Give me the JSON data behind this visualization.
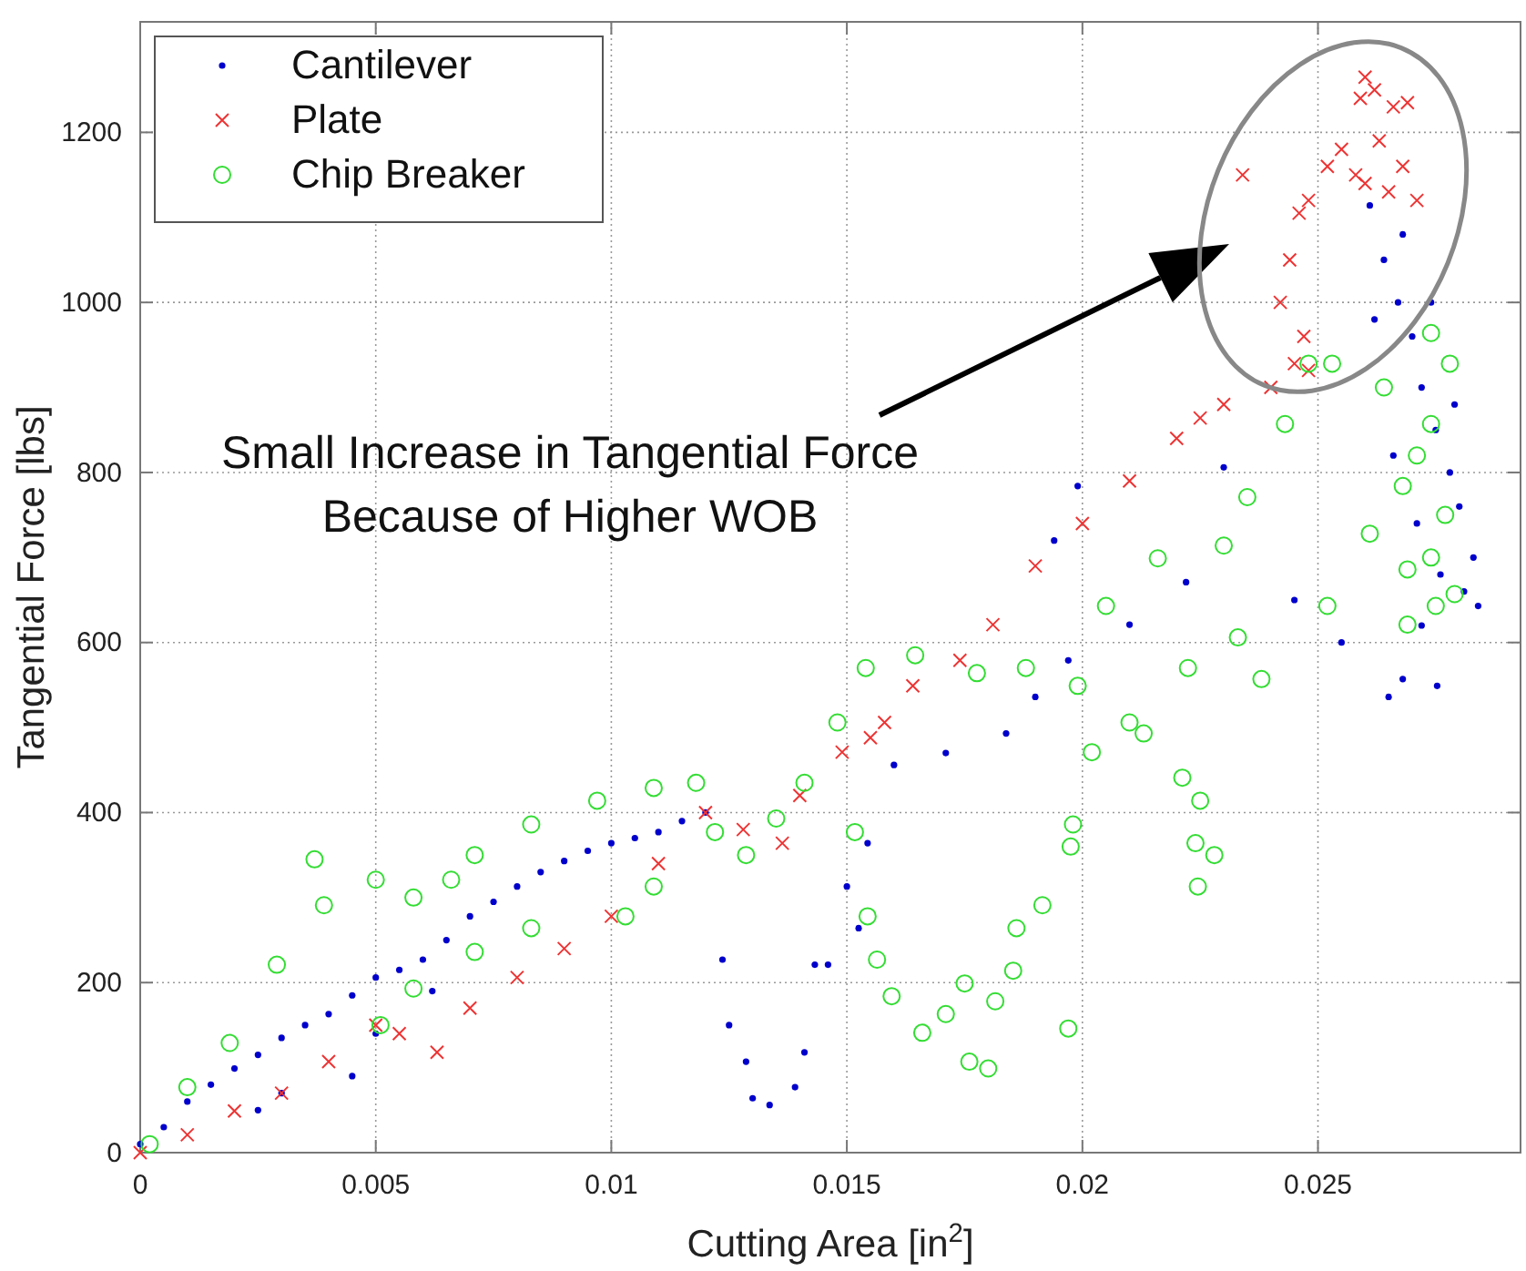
{
  "chart_data": {
    "type": "scatter",
    "xlabel": "Cutting Area [in$^{2}$]",
    "ylabel": "Tangential Force [lbs]",
    "xlim": [
      0,
      0.0293
    ],
    "ylim": [
      0,
      1330
    ],
    "xticks": [
      0,
      0.005,
      0.01,
      0.015,
      0.02,
      0.025
    ],
    "yticks": [
      0,
      200,
      400,
      600,
      800,
      1000,
      1200
    ],
    "grid": true,
    "legend": "top left",
    "annotations": [
      "Small Increase in Tangential Force Because of Higher WOB"
    ],
    "series": [
      {
        "name": "Cantilever",
        "color": "#0000cc",
        "marker": "circle",
        "x": [
          0,
          0.0005,
          0.001,
          0.0015,
          0.002,
          0.0025,
          0.003,
          0.0035,
          0.004,
          0.0045,
          0.005,
          0.0055,
          0.006,
          0.0065,
          0.007,
          0.0075,
          0.008,
          0.0085,
          0.009,
          0.0095,
          0.01,
          0.0105,
          0.011,
          0.0115,
          0.012,
          0.0025,
          0.003,
          0.0045,
          0.005,
          0.0062,
          0.01236,
          0.0125,
          0.01286,
          0.013,
          0.01336,
          0.0139,
          0.0141,
          0.01432,
          0.0146,
          0.015,
          0.01525,
          0.01544,
          0.016,
          0.0171,
          0.01838,
          0.019,
          0.0197,
          0.021,
          0.0194,
          0.0199,
          0.0222,
          0.023,
          0.0245,
          0.0255,
          0.0261,
          0.0264,
          0.0267,
          0.027,
          0.0272,
          0.0275,
          0.0278,
          0.028,
          0.0283,
          0.0284,
          0.0276,
          0.0272,
          0.0268,
          0.0265,
          0.0262,
          0.0268,
          0.02753,
          0.0271,
          0.0279,
          0.0266,
          0.0274,
          0.0281
        ],
        "values": [
          10,
          30,
          60,
          80,
          99,
          115,
          135,
          150,
          163,
          185,
          206,
          215,
          227,
          250,
          278,
          295,
          313,
          330,
          343,
          355,
          364,
          370,
          377,
          390,
          400,
          50,
          70,
          90,
          140,
          190,
          227,
          150,
          107,
          64,
          56,
          77,
          118,
          221,
          221,
          313,
          264,
          364,
          456,
          470,
          493,
          536,
          579,
          621,
          720,
          784,
          671,
          806,
          650,
          600,
          1114,
          1050,
          1000,
          960,
          900,
          850,
          800,
          760,
          700,
          643,
          680,
          620,
          557,
          536,
          980,
          1080,
          549,
          740,
          880,
          820,
          1000,
          660
        ]
      },
      {
        "name": "Plate",
        "color": "#ee3333",
        "marker": "cross",
        "x": [
          0,
          0.001,
          0.002,
          0.003,
          0.004,
          0.005,
          0.0055,
          0.0063,
          0.007,
          0.008,
          0.009,
          0.01,
          0.011,
          0.012,
          0.0128,
          0.01363,
          0.014,
          0.0149,
          0.0155,
          0.0158,
          0.0164,
          0.0174,
          0.0181,
          0.019,
          0.02,
          0.021,
          0.022,
          0.0225,
          0.023,
          0.024,
          0.0245,
          0.0248,
          0.0242,
          0.0244,
          0.0246,
          0.0247,
          0.0248,
          0.0252,
          0.0255,
          0.0258,
          0.026,
          0.0263,
          0.0265,
          0.0268,
          0.0271,
          0.0234,
          0.0259,
          0.026,
          0.0262,
          0.0266,
          0.0269
        ],
        "values": [
          0,
          21,
          49,
          70,
          107,
          150,
          140,
          118,
          170,
          206,
          240,
          278,
          340,
          400,
          380,
          364,
          420,
          471,
          488,
          506,
          549,
          579,
          621,
          690,
          740,
          790,
          840,
          864,
          880,
          900,
          928,
          920,
          1000,
          1050,
          1105,
          960,
          1120,
          1160,
          1180,
          1150,
          1140,
          1190,
          1130,
          1160,
          1120,
          1150,
          1240,
          1265,
          1250,
          1230,
          1235
        ]
      },
      {
        "name": "Chip Breaker",
        "color": "#33dd33",
        "marker": "circle-open",
        "x": [
          0.0002,
          0.001,
          0.0019,
          0.0029,
          0.0039,
          0.005,
          0.0058,
          0.0066,
          0.0071,
          0.0083,
          0.0097,
          0.0109,
          0.0118,
          0.0037,
          0.0051,
          0.0058,
          0.0071,
          0.0083,
          0.0103,
          0.0109,
          0.0122,
          0.01286,
          0.0135,
          0.0141,
          0.0148,
          0.0154,
          0.01645,
          0.01776,
          0.0188,
          0.0199,
          0.0202,
          0.0198,
          0.01975,
          0.01915,
          0.0186,
          0.01517,
          0.01544,
          0.01564,
          0.01595,
          0.0166,
          0.0171,
          0.0175,
          0.0176,
          0.018,
          0.01815,
          0.01853,
          0.0197,
          0.021,
          0.0213,
          0.02212,
          0.0225,
          0.0224,
          0.02245,
          0.0228,
          0.02224,
          0.0233,
          0.0238,
          0.0205,
          0.0216,
          0.023,
          0.0235,
          0.0243,
          0.0248,
          0.0253,
          0.0252,
          0.0261,
          0.0268,
          0.0274,
          0.0274,
          0.0278,
          0.0274,
          0.0269,
          0.0275,
          0.0279,
          0.0269,
          0.0264,
          0.0271,
          0.0277
        ],
        "values": [
          10,
          77,
          129,
          221,
          291,
          321,
          300,
          321,
          350,
          386,
          414,
          429,
          435,
          345,
          150,
          193,
          236,
          264,
          278,
          313,
          377,
          350,
          393,
          435,
          506,
          570,
          585,
          564,
          570,
          549,
          471,
          386,
          360,
          291,
          264,
          377,
          278,
          227,
          184,
          141,
          163,
          199,
          107,
          99,
          178,
          214,
          146,
          506,
          493,
          441,
          414,
          364,
          313,
          350,
          570,
          606,
          557,
          643,
          699,
          714,
          771,
          857,
          928,
          928,
          643,
          728,
          784,
          857,
          964,
          928,
          700,
          686,
          643,
          657,
          621,
          900,
          820,
          750
        ]
      }
    ]
  }
}
